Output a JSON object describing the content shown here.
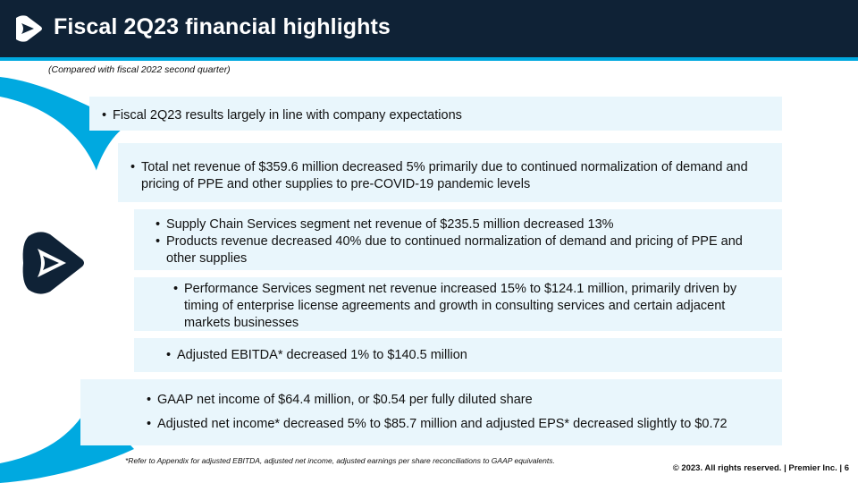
{
  "header": {
    "title": "Fiscal 2Q23 financial highlights",
    "subtitle": "(Compared with fiscal 2022 second quarter)"
  },
  "boxes": [
    {
      "bullets": [
        "Fiscal 2Q23 results largely in line with company expectations"
      ]
    },
    {
      "bullets": [
        "Total net revenue of $359.6 million decreased 5% primarily due to continued normalization of demand and pricing of PPE and other supplies to pre-COVID-19 pandemic levels"
      ]
    },
    {
      "bullets": [
        "Supply Chain Services segment net revenue of $235.5 million decreased 13%",
        "Products revenue decreased 40% due to continued normalization of demand and pricing of PPE and other supplies"
      ]
    },
    {
      "bullets": [
        "Performance Services segment net revenue increased 15% to $124.1 million, primarily driven by timing of enterprise license agreements and growth in consulting services and certain adjacent markets businesses"
      ]
    },
    {
      "bullets": [
        "Adjusted EBITDA* decreased 1% to $140.5 million"
      ]
    },
    {
      "bullets": [
        "GAAP net income of $64.4 million, or $0.54 per fully diluted share",
        "Adjusted net income* decreased 5% to $85.7 million and adjusted EPS* decreased slightly to $0.72"
      ]
    }
  ],
  "footer": {
    "footnote": "*Refer to Appendix for adjusted EBITDA, adjusted net income, adjusted earnings per share reconciliations to GAAP equivalents.",
    "copyright": "© 2023. All rights reserved.  |  Premier Inc.  |  6"
  },
  "colors": {
    "header_bg": "#0f2236",
    "accent": "#00a9e0",
    "box_bg": "#e9f6fc"
  }
}
